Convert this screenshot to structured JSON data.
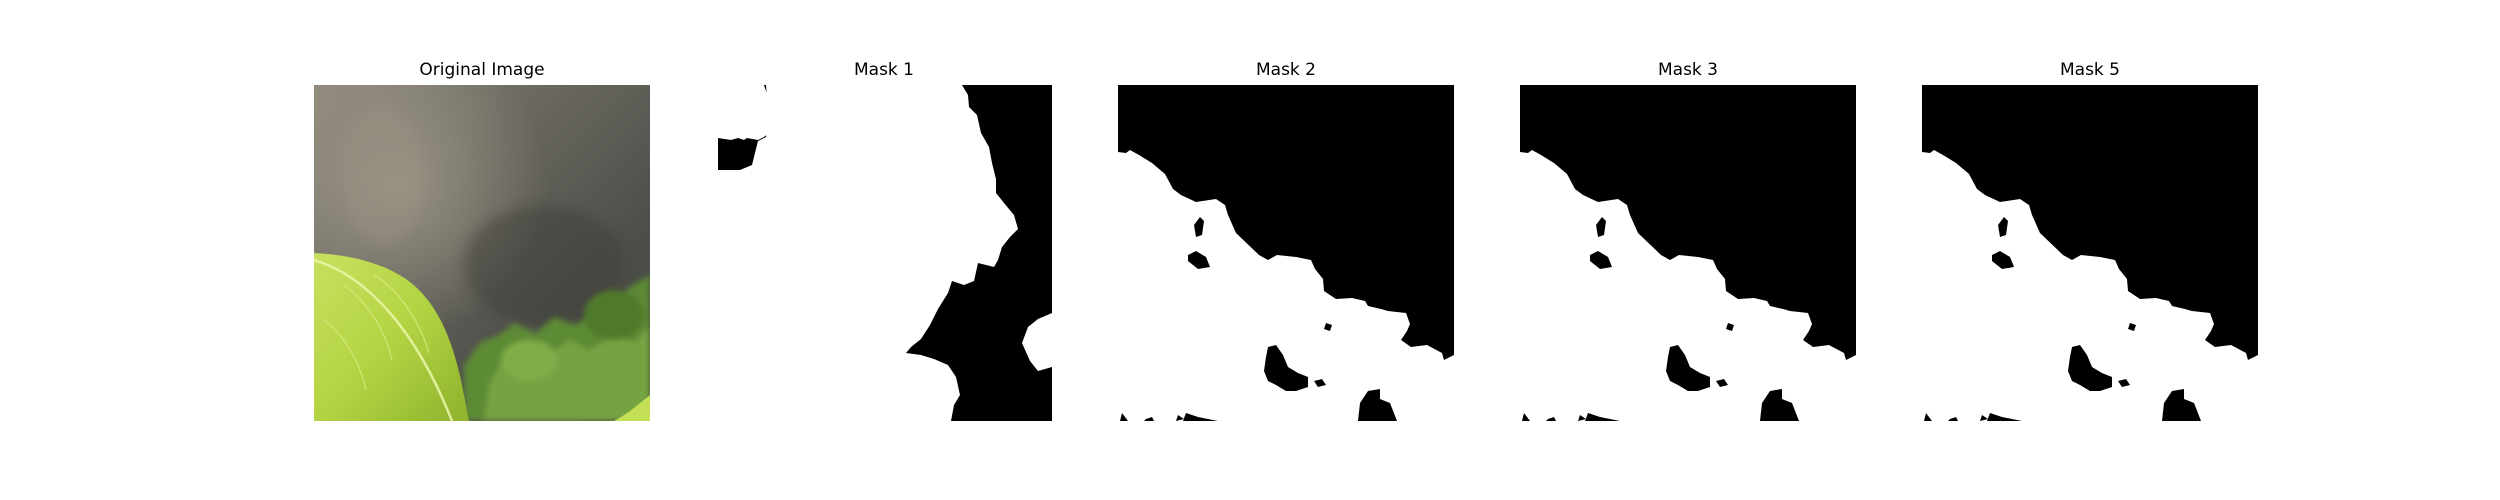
{
  "figure": {
    "panels": [
      {
        "title": "Original Image"
      },
      {
        "title": "Mask 1"
      },
      {
        "title": "Mask 2"
      },
      {
        "title": "Mask 3"
      },
      {
        "title": "Mask 5"
      }
    ]
  },
  "colors": {
    "mask_foreground": "#ffffff",
    "mask_background": "#000000",
    "background_wall_gray": "#6b6a63",
    "leaf_green": "#b5d84a",
    "foliage_green": "#6f9a3e"
  }
}
